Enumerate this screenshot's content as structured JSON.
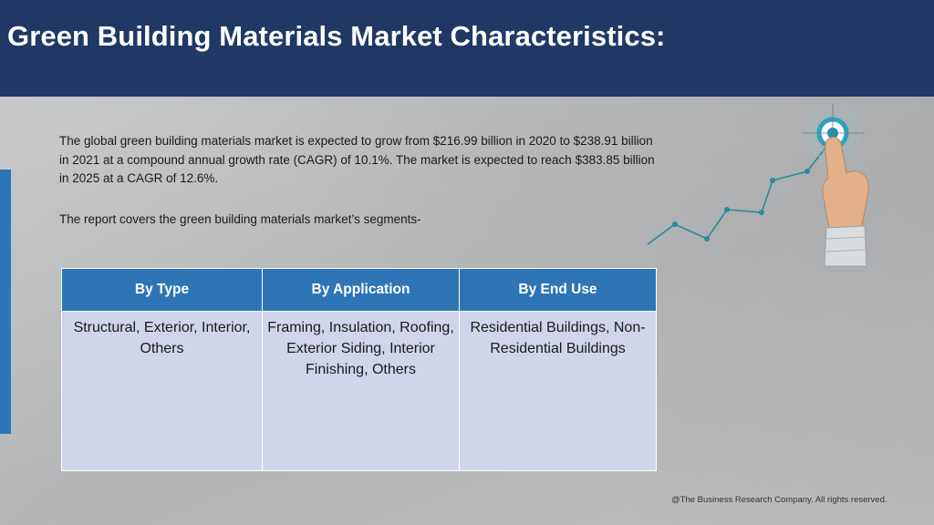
{
  "header": {
    "title": "Green Building Materials Market Characteristics:"
  },
  "intro": {
    "paragraph": "The global green building materials market is expected to grow from $216.99 billion in 2020 to $238.91 billion in 2021 at a compound annual growth rate (CAGR) of 10.1%. The market is expected to reach $383.85 billion in 2025 at a CAGR of 12.6%.",
    "segments_line": "The report covers the green building materials market’s segments-"
  },
  "table": {
    "headers": [
      "By Type",
      "By Application",
      "By End Use"
    ],
    "cells": [
      "Structural, Exterior, Interior, Others",
      "Framing, Insulation, Roofing, Exterior Siding, Interior Finishing, Others",
      "Residential Buildings, Non-Residential Buildings"
    ]
  },
  "footer": {
    "copyright": "@The Business Research Company. All rights reserved."
  },
  "colors": {
    "header_bg": "#1f3864",
    "table_header_bg": "#2e75b6",
    "table_cell_bg": "#d0d5eb",
    "accent": "#2e75b6",
    "chart_teal": "#2b8a9e"
  }
}
